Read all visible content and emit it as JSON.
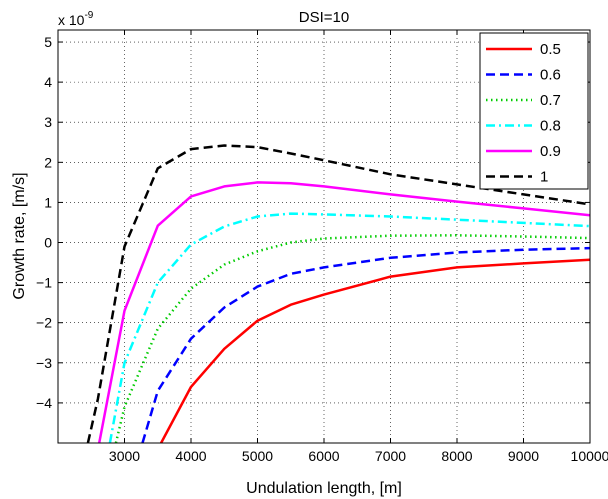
{
  "chart_data": {
    "type": "line",
    "title": "DSI=10",
    "xlabel": "Undulation length, [m]",
    "ylabel": "Growth rate, [m/s]",
    "y_multiplier": "x 10",
    "y_exponent": "-9",
    "xlim": [
      2000,
      10000
    ],
    "ylim": [
      -5,
      5.3
    ],
    "xticks": [
      3000,
      4000,
      5000,
      6000,
      7000,
      8000,
      9000,
      10000
    ],
    "xtick_labels": [
      "3000",
      "4000",
      "5000",
      "6000",
      "7000",
      "8000",
      "9000",
      "10000"
    ],
    "yticks": [
      -4,
      -3,
      -2,
      -1,
      0,
      1,
      2,
      3,
      4,
      5
    ],
    "ytick_labels": [
      "−4",
      "−3",
      "−2",
      "−1",
      "0",
      "1",
      "2",
      "3",
      "4",
      "5"
    ],
    "grid": true,
    "legend_position": "top-right",
    "series": [
      {
        "name": "0.5",
        "color": "#ff0000",
        "style": "solid",
        "x": [
          3550,
          4000,
          4500,
          5000,
          5500,
          6000,
          7000,
          8000,
          9000,
          10000
        ],
        "y": [
          -5.0,
          -3.6,
          -2.65,
          -1.95,
          -1.55,
          -1.3,
          -0.85,
          -0.62,
          -0.52,
          -0.43
        ]
      },
      {
        "name": "0.6",
        "color": "#0000ff",
        "style": "dashed",
        "x": [
          3270,
          3500,
          4000,
          4500,
          5000,
          5500,
          6000,
          7000,
          8000,
          9000,
          10000
        ],
        "y": [
          -5.0,
          -3.7,
          -2.4,
          -1.62,
          -1.1,
          -0.78,
          -0.62,
          -0.38,
          -0.25,
          -0.18,
          -0.14
        ]
      },
      {
        "name": "0.7",
        "color": "#00cc00",
        "style": "dotted",
        "x": [
          2870,
          3000,
          3500,
          4000,
          4500,
          5000,
          5500,
          6000,
          7000,
          8000,
          9000,
          10000
        ],
        "y": [
          -5.0,
          -4.1,
          -2.15,
          -1.15,
          -0.55,
          -0.22,
          0.0,
          0.1,
          0.17,
          0.18,
          0.15,
          0.11
        ]
      },
      {
        "name": "0.8",
        "color": "#00ffff",
        "style": "dashdot",
        "x": [
          2780,
          3000,
          3500,
          4000,
          4500,
          5000,
          5500,
          6000,
          7000,
          8000,
          9000,
          10000
        ],
        "y": [
          -5.0,
          -3.0,
          -1.0,
          -0.05,
          0.4,
          0.65,
          0.72,
          0.7,
          0.65,
          0.57,
          0.49,
          0.41
        ]
      },
      {
        "name": "0.9",
        "color": "#ff00ff",
        "style": "solid",
        "x": [
          2620,
          3000,
          3500,
          4000,
          4500,
          5000,
          5500,
          6000,
          7000,
          8000,
          9000,
          10000
        ],
        "y": [
          -5.0,
          -1.7,
          0.42,
          1.15,
          1.4,
          1.5,
          1.48,
          1.4,
          1.2,
          1.02,
          0.85,
          0.68
        ]
      },
      {
        "name": "1",
        "color": "#000000",
        "style": "dashed",
        "x": [
          2450,
          2600,
          3000,
          3500,
          4000,
          4500,
          5000,
          5500,
          6000,
          7000,
          8000,
          9000,
          10000
        ],
        "y": [
          -5.0,
          -3.9,
          -0.1,
          1.85,
          2.33,
          2.42,
          2.38,
          2.22,
          2.05,
          1.7,
          1.45,
          1.2,
          0.95
        ]
      }
    ]
  }
}
